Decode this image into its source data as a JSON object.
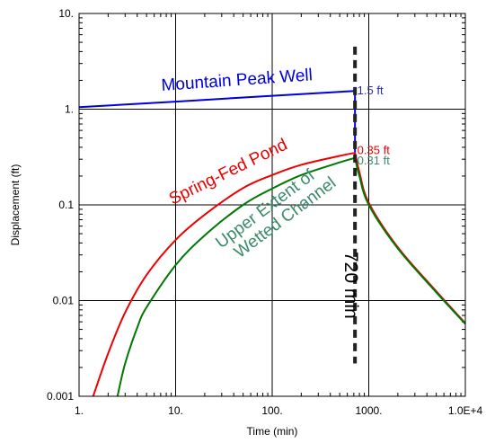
{
  "chart_data": {
    "type": "line",
    "xlabel": "Time (min)",
    "ylabel": "Displacement (ft)",
    "x_scale": "log",
    "y_scale": "log",
    "xlim": [
      1,
      10000
    ],
    "ylim": [
      0.001,
      10
    ],
    "x_ticks": [
      1,
      10,
      100,
      1000,
      10000
    ],
    "x_tick_labels": [
      "1.",
      "10.",
      "100.",
      "1000.",
      "1.0E+4"
    ],
    "y_ticks": [
      0.001,
      0.01,
      0.1,
      1,
      10
    ],
    "y_tick_labels": [
      "0.001",
      "0.01",
      "0.1",
      "1.",
      "10."
    ],
    "grid": true,
    "series": [
      {
        "name": "Mountain Peak Well",
        "color": "#0000dd",
        "x": [
          1,
          10,
          100,
          720,
          720
        ],
        "y": [
          1.05,
          1.2,
          1.38,
          1.55,
          0.33
        ]
      },
      {
        "name": "Spring-Fed Pond",
        "color": "#ee0000",
        "x": [
          1.4,
          2,
          3,
          5,
          10,
          20,
          50,
          100,
          200,
          500,
          720,
          800,
          1000,
          2000,
          5000,
          10000
        ],
        "y": [
          0.001,
          0.0028,
          0.0075,
          0.0185,
          0.043,
          0.079,
          0.15,
          0.205,
          0.262,
          0.325,
          0.35,
          0.22,
          0.105,
          0.036,
          0.0125,
          0.0058
        ]
      },
      {
        "name": "Upper Extent of Wetted Channel",
        "color": "#007700",
        "x": [
          2.5,
          3,
          4,
          5,
          10,
          20,
          50,
          100,
          200,
          500,
          720,
          800,
          1000,
          2000,
          5000,
          10000
        ],
        "y": [
          0.001,
          0.0022,
          0.0052,
          0.0085,
          0.0235,
          0.048,
          0.1,
          0.148,
          0.205,
          0.278,
          0.31,
          0.2,
          0.1,
          0.035,
          0.0122,
          0.0057
        ]
      }
    ],
    "marker": {
      "x": 720,
      "label": "720 min",
      "y_top": 4.5,
      "y_bottom": 0.0022
    },
    "annotations": [
      {
        "text": "1.5 ft",
        "x": 760,
        "y": 1.55,
        "color": "#2a2a9a"
      },
      {
        "text": "0.35 ft",
        "x": 760,
        "y": 0.37,
        "color": "#ee0000"
      },
      {
        "text": "0.31 ft",
        "x": 760,
        "y": 0.29,
        "color": "#3a8a6a"
      }
    ]
  }
}
